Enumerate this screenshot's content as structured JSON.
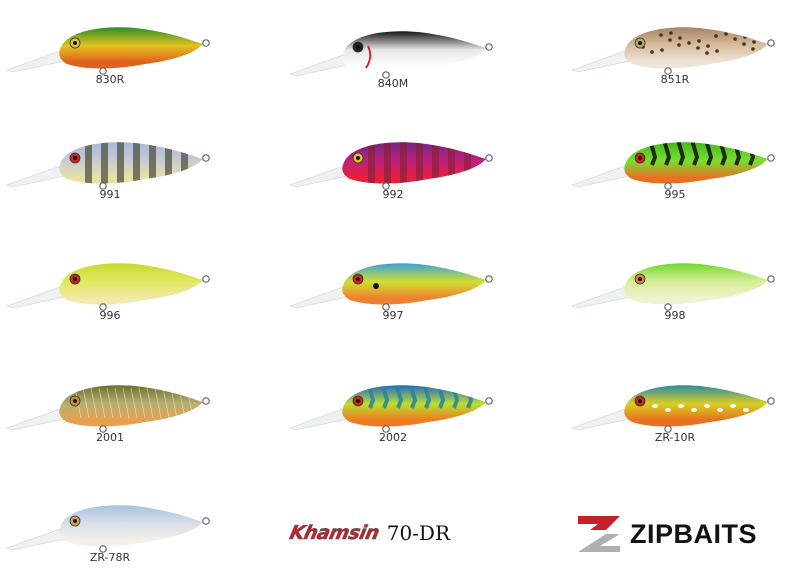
{
  "lures": [
    {
      "code": "830R",
      "top": "#2e8c2a",
      "mid": "#e2c21e",
      "belly": "#e2601c",
      "eye": "#d8c040",
      "pattern": "plain"
    },
    {
      "code": "840M",
      "top": "#151515",
      "mid": "#e6e6e6",
      "belly": "#ffffff",
      "eye": "#222",
      "pattern": "gill"
    },
    {
      "code": "851R",
      "top": "#a88462",
      "mid": "#d8bea0",
      "belly": "#efe4d8",
      "eye": "#c0a060",
      "pattern": "spots"
    },
    {
      "code": "991",
      "top": "#a8b8d8",
      "mid": "#c8ccd0",
      "belly": "#e8e0a8",
      "eye": "#d02020",
      "pattern": "bars"
    },
    {
      "code": "992",
      "top": "#6a2a80",
      "mid": "#c0207a",
      "belly": "#e8203a",
      "eye": "#e0c020",
      "pattern": "bars-light"
    },
    {
      "code": "995",
      "top": "#48b818",
      "mid": "#78e030",
      "belly": "#e87020",
      "eye": "#d02020",
      "pattern": "tiger"
    },
    {
      "code": "996",
      "top": "#c8d830",
      "mid": "#e0e860",
      "belly": "#f2e8a8",
      "eye": "#d02020",
      "pattern": "plain"
    },
    {
      "code": "997",
      "top": "#3ca0d8",
      "mid": "#d0e030",
      "belly": "#f08030",
      "eye": "#d02020",
      "pattern": "dot"
    },
    {
      "code": "998",
      "top": "#70d830",
      "mid": "#d8ee98",
      "belly": "#eef2d0",
      "eye": "#e08040",
      "pattern": "plain"
    },
    {
      "code": "2001",
      "top": "#6a7030",
      "mid": "#b8b070",
      "belly": "#e8a050",
      "eye": "#c89030",
      "pattern": "scales"
    },
    {
      "code": "2002",
      "top": "#2868c0",
      "mid": "#b8e030",
      "belly": "#f07a20",
      "eye": "#d02020",
      "pattern": "tiger-light"
    },
    {
      "code": "ZR-10R",
      "top": "#2a8aa8",
      "mid": "#d8d020",
      "belly": "#e87020",
      "eye": "#d02020",
      "pattern": "spots-white"
    },
    {
      "code": "ZR-78R",
      "top": "#a8c0e0",
      "mid": "#d8e0e8",
      "belly": "#f4f0e8",
      "eye": "#d0a060",
      "pattern": "plain"
    }
  ],
  "brand": {
    "series_logo": "Khamsin",
    "model": "70-DR",
    "company_logo": "ZIPBAITS",
    "logo_red": "#c8202a",
    "logo_gray": "#b0b0b0"
  }
}
